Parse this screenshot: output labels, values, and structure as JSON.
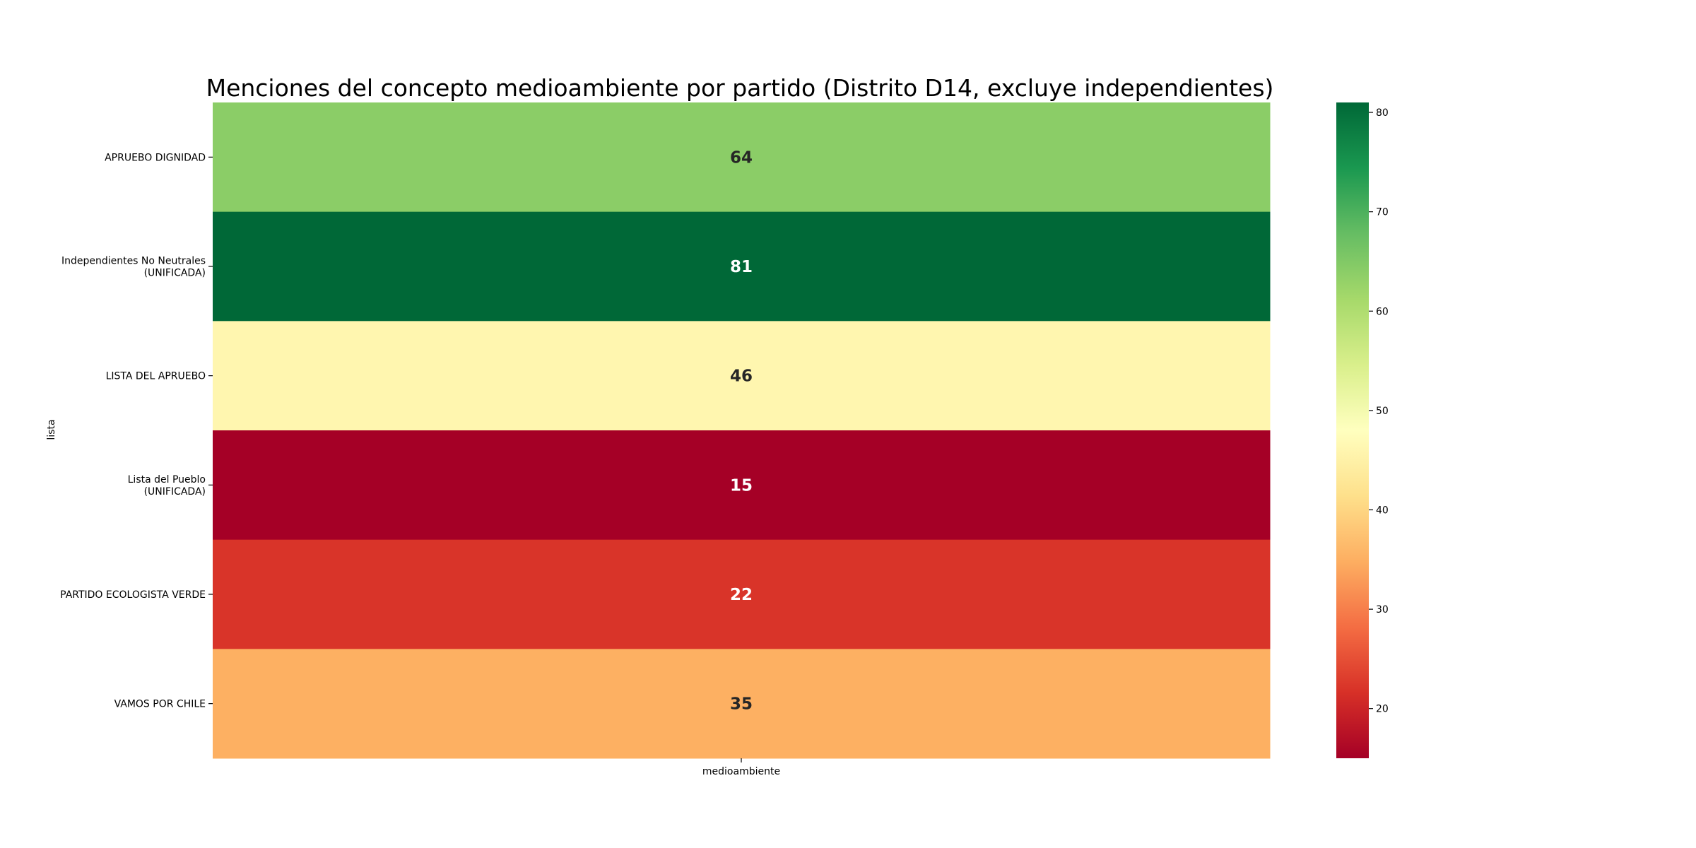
{
  "chart_data": {
    "type": "heatmap",
    "title": "Menciones del concepto medioambiente por partido (Distrito D14, excluye independientes)",
    "xlabel": "",
    "ylabel": "lista",
    "columns": [
      "medioambiente"
    ],
    "rows": [
      "APRUEBO DIGNIDAD",
      "Independientes No Neutrales\n(UNIFICADA)",
      "LISTA DEL APRUEBO",
      "Lista del Pueblo\n(UNIFICADA)",
      "PARTIDO ECOLOGISTA VERDE",
      "VAMOS POR CHILE"
    ],
    "values": [
      [
        64
      ],
      [
        81
      ],
      [
        46
      ],
      [
        15
      ],
      [
        22
      ],
      [
        35
      ]
    ],
    "colormap": "RdYlGn",
    "vmin": 15,
    "vmax": 81,
    "colorbar_ticks": [
      20,
      30,
      40,
      50,
      60,
      70,
      80
    ],
    "annotate": true,
    "grid": false
  }
}
